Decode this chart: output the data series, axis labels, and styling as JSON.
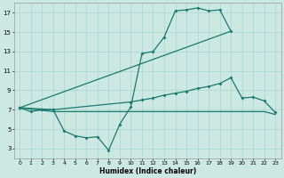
{
  "xlabel": "Humidex (Indice chaleur)",
  "line1_x": [
    0,
    1,
    2,
    3,
    4,
    5,
    6,
    7,
    8,
    9,
    10,
    11,
    12,
    13,
    14,
    15,
    16,
    17,
    18,
    19
  ],
  "line1_y": [
    7.2,
    6.8,
    7.0,
    7.0,
    4.8,
    4.3,
    4.1,
    4.2,
    2.8,
    5.5,
    7.3,
    12.8,
    13.0,
    14.5,
    17.2,
    17.3,
    17.5,
    17.2,
    17.3,
    15.1
  ],
  "line2_x": [
    0,
    19
  ],
  "line2_y": [
    7.2,
    15.1
  ],
  "line3_x": [
    0,
    3,
    10,
    11,
    12,
    13,
    14,
    15,
    16,
    17,
    18,
    19,
    20,
    21,
    22,
    23
  ],
  "line3_y": [
    7.2,
    7.0,
    7.8,
    8.0,
    8.2,
    8.5,
    8.7,
    8.9,
    9.2,
    9.4,
    9.7,
    10.3,
    8.2,
    8.3,
    7.9,
    6.7
  ],
  "line4_x": [
    0,
    3,
    10,
    11,
    12,
    13,
    14,
    15,
    16,
    17,
    18,
    19,
    20,
    21,
    22,
    23
  ],
  "line4_y": [
    7.2,
    6.8,
    6.8,
    6.8,
    6.8,
    6.8,
    6.8,
    6.8,
    6.8,
    6.8,
    6.8,
    6.8,
    6.8,
    6.8,
    6.8,
    6.5
  ],
  "color": "#1a7a6e",
  "bg_color": "#cce8e3",
  "grid_color": "#aad4ce",
  "ylim": [
    2.0,
    18.0
  ],
  "xlim": [
    -0.5,
    23.5
  ],
  "yticks": [
    3,
    5,
    7,
    9,
    11,
    13,
    15,
    17
  ],
  "xticks": [
    0,
    1,
    2,
    3,
    4,
    5,
    6,
    7,
    8,
    9,
    10,
    11,
    12,
    13,
    14,
    15,
    16,
    17,
    18,
    19,
    20,
    21,
    22,
    23
  ]
}
